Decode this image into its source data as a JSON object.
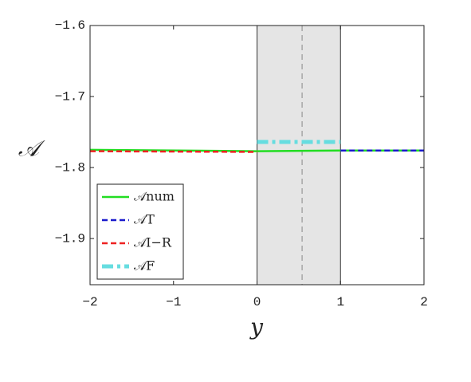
{
  "chart_data": {
    "type": "line",
    "xlabel": "y",
    "ylabel": "𝒜",
    "xlim": [
      -2,
      2
    ],
    "ylim": [
      -1.965,
      -1.6
    ],
    "xticks": [
      {
        "value": -2,
        "label": "−2"
      },
      {
        "value": -1,
        "label": "−1"
      },
      0,
      1,
      2
    ],
    "yticks": [
      {
        "value": -1.9,
        "label": "−1.9"
      },
      {
        "value": -1.8,
        "label": "−1.8"
      },
      {
        "value": -1.7,
        "label": "−1.7"
      },
      {
        "value": -1.6,
        "label": "−1.6"
      }
    ],
    "shaded_region": [
      0,
      1
    ],
    "shade_color": "#e5e5e5",
    "marker_x": 0.54,
    "legend": "lower left",
    "series": [
      {
        "name": "𝒜num",
        "color": "#22dd22",
        "style": "solid",
        "x": [
          -2,
          0,
          1,
          2
        ],
        "values": [
          -1.775,
          -1.777,
          -1.776,
          -1.776
        ]
      },
      {
        "name": "𝒜T",
        "color": "#1a1acc",
        "style": "dashed",
        "x": [
          1,
          2
        ],
        "values": [
          -1.776,
          -1.776
        ]
      },
      {
        "name": "𝒜I−R",
        "color": "#ee2222",
        "style": "dashed",
        "x": [
          -2,
          0
        ],
        "values": [
          -1.777,
          -1.778
        ]
      },
      {
        "name": "𝒜F",
        "color": "#66dde0",
        "style": "dashdot",
        "x": [
          0,
          1
        ],
        "values": [
          -1.764,
          -1.764
        ]
      }
    ]
  }
}
